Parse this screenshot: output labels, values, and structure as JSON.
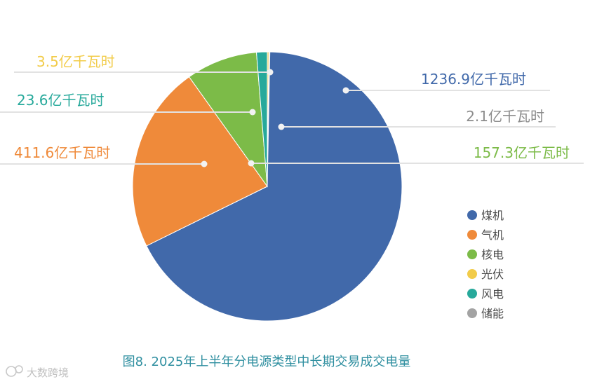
{
  "chart_data": {
    "type": "pie",
    "title": "图8. 2025年上半年分电源类型中长期交易成交电量",
    "unit": "亿千瓦时",
    "slices": [
      {
        "name": "煤机",
        "value": 1236.9,
        "label": "1236.9亿千瓦时",
        "color": "#4169aa"
      },
      {
        "name": "气机",
        "value": 411.6,
        "label": "411.6亿千瓦时",
        "color": "#ef8a3a"
      },
      {
        "name": "核电",
        "value": 157.3,
        "label": "157.3亿千瓦时",
        "color": "#7cbb48"
      },
      {
        "name": "风电",
        "value": 23.6,
        "label": "23.6亿千瓦时",
        "color": "#27a99b"
      },
      {
        "name": "光伏",
        "value": 3.5,
        "label": "3.5亿千瓦时",
        "color": "#f2cc4a"
      },
      {
        "name": "储能",
        "value": 2.1,
        "label": "2.1亿千瓦时",
        "color": "#a3a3a3"
      }
    ],
    "legend": [
      "煤机",
      "气机",
      "核电",
      "光伏",
      "风电",
      "储能"
    ],
    "legend_position": "right"
  },
  "watermark": "大数跨境"
}
